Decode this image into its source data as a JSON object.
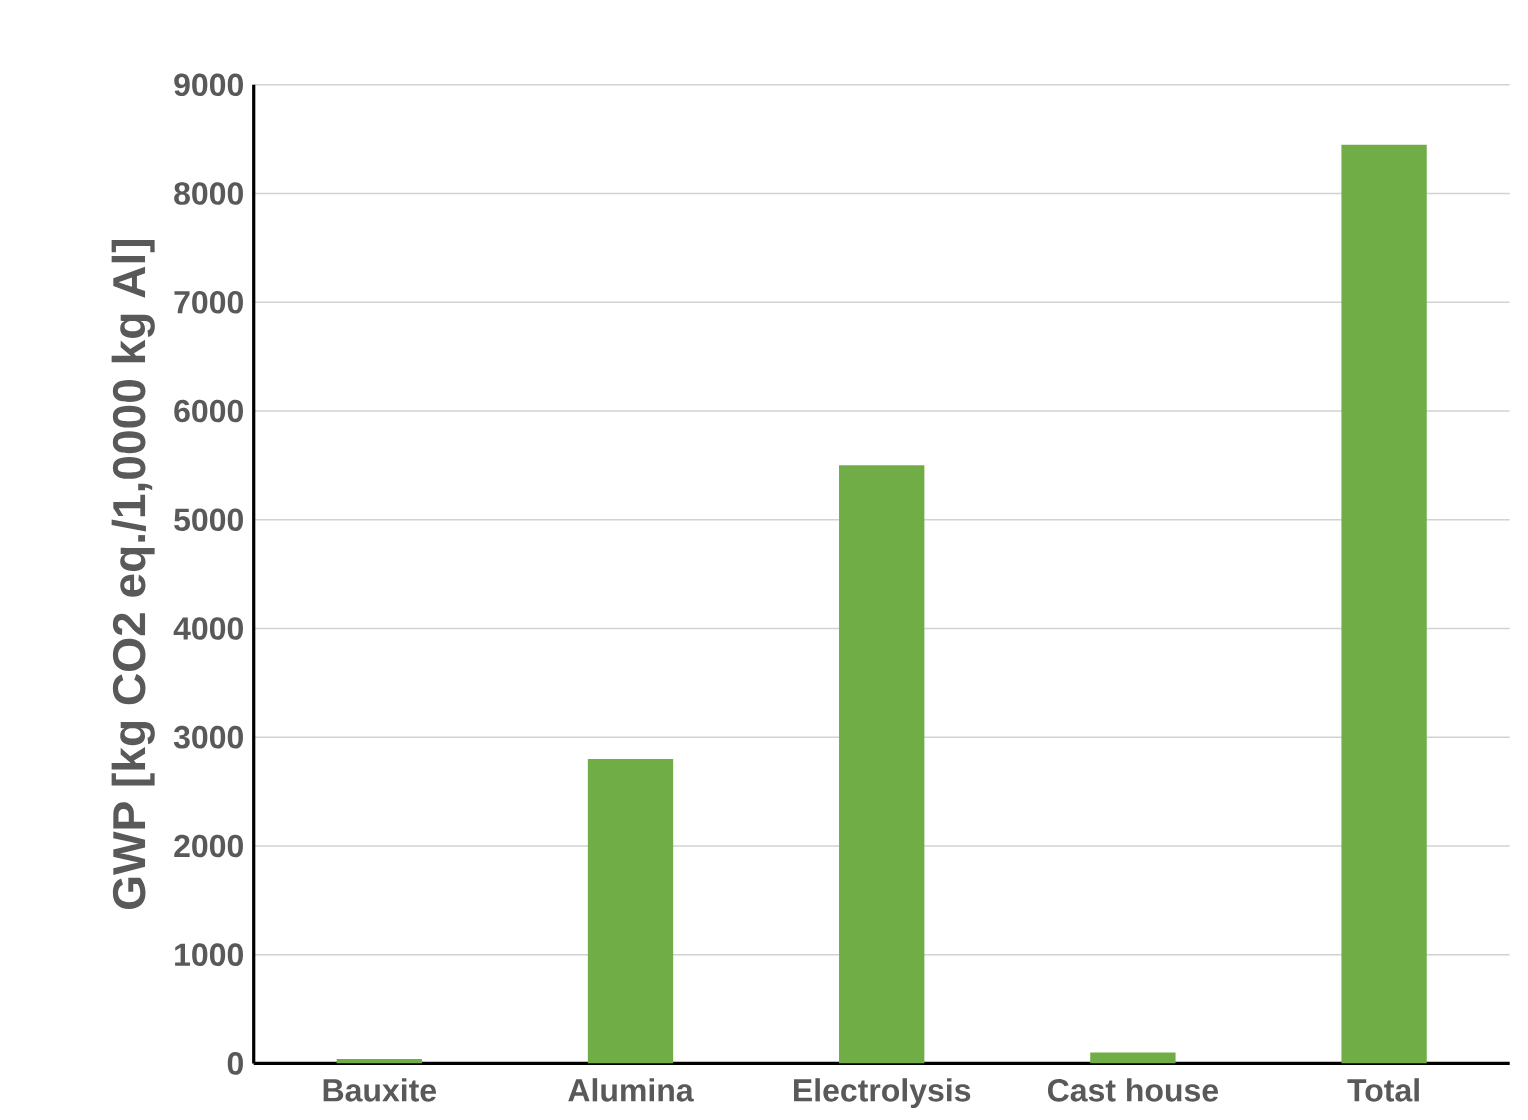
{
  "chart_data": {
    "type": "bar",
    "ylabel": "GWP [kg CO2 eq./1,0000 kg Al]",
    "categories": [
      "Bauxite",
      "Alumina",
      "Electrolysis",
      "Cast house",
      "Total"
    ],
    "values": [
      40,
      2800,
      5500,
      100,
      8450
    ],
    "color": "#70ad47",
    "ylim": [
      0,
      9000
    ],
    "yticks": [
      0,
      1000,
      2000,
      3000,
      4000,
      5000,
      6000,
      7000,
      8000,
      9000
    ],
    "grid": "y"
  }
}
